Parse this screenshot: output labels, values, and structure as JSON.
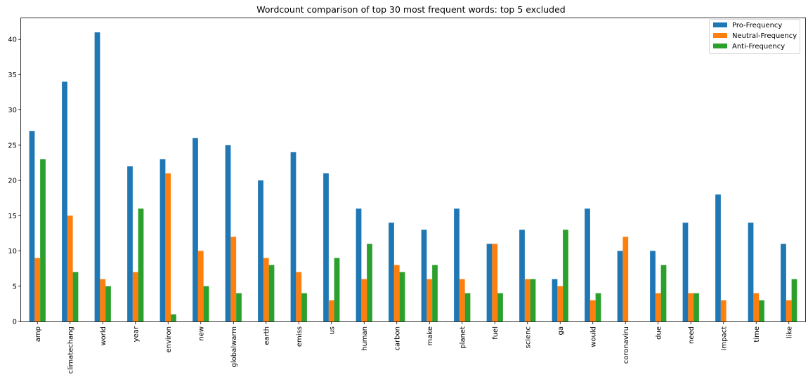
{
  "chart_data": {
    "type": "bar",
    "title": "Wordcount comparison of top 30 most frequent words: top 5 excluded",
    "xlabel": "",
    "ylabel": "",
    "ylim": [
      0,
      43
    ],
    "yticks": [
      0,
      5,
      10,
      15,
      20,
      25,
      30,
      35,
      40
    ],
    "grid": false,
    "legend_position": "top-right",
    "categories": [
      "amp",
      "climatechang",
      "world",
      "year",
      "environ",
      "new",
      "globalwarm",
      "earth",
      "emiss",
      "us",
      "human",
      "carbon",
      "make",
      "planet",
      "fuel",
      "scienc",
      "ga",
      "would",
      "coronaviru",
      "due",
      "need",
      "impact",
      "time",
      "like"
    ],
    "series": [
      {
        "name": "Pro-Frequency",
        "color": "#1f77b4",
        "values": [
          27,
          34,
          41,
          22,
          23,
          26,
          25,
          20,
          24,
          21,
          16,
          14,
          13,
          16,
          11,
          13,
          6,
          16,
          10,
          10,
          14,
          18,
          14,
          11
        ]
      },
      {
        "name": "Neutral-Frequency",
        "color": "#ff7f0e",
        "values": [
          9,
          15,
          6,
          7,
          21,
          10,
          12,
          9,
          7,
          3,
          6,
          8,
          6,
          6,
          11,
          6,
          5,
          3,
          12,
          4,
          4,
          3,
          4,
          3
        ]
      },
      {
        "name": "Anti-Frequency",
        "color": "#2ca02c",
        "values": [
          23,
          7,
          5,
          16,
          1,
          5,
          4,
          8,
          4,
          9,
          11,
          7,
          8,
          4,
          4,
          6,
          13,
          4,
          0,
          8,
          4,
          0,
          3,
          6
        ]
      }
    ]
  }
}
